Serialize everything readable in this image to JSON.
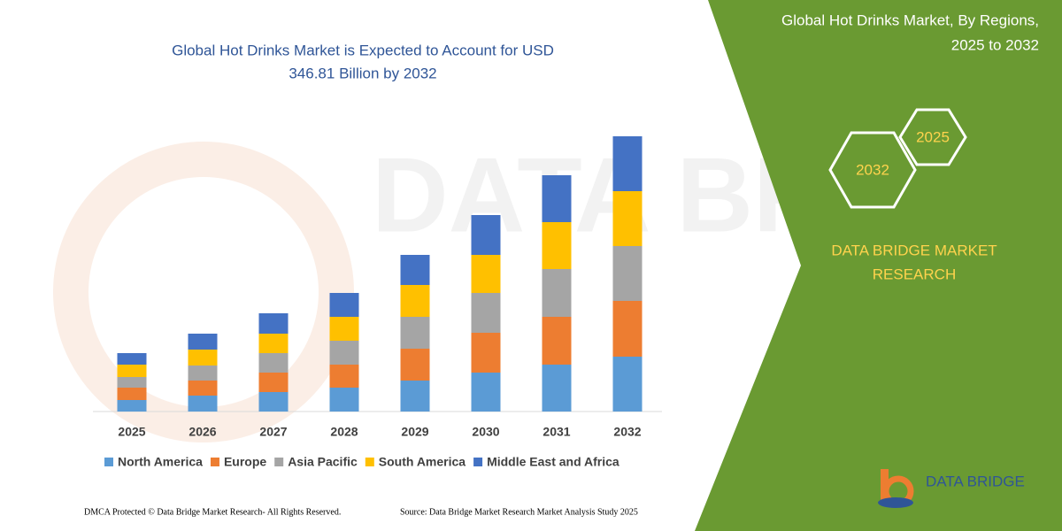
{
  "chart_data": {
    "type": "bar",
    "stacked": true,
    "title": [
      "Global Hot Drinks Market is Expected to Account for USD",
      "346.81 Billion by 2032"
    ],
    "categories": [
      "2025",
      "2026",
      "2027",
      "2028",
      "2029",
      "2030",
      "2031",
      "2032"
    ],
    "series": [
      {
        "name": "North America",
        "color": "#5b9bd5",
        "values": [
          13,
          18,
          22,
          27,
          35,
          44,
          53,
          62
        ]
      },
      {
        "name": "Europe",
        "color": "#ed7d31",
        "values": [
          14,
          17,
          22,
          26,
          36,
          45,
          54,
          63
        ]
      },
      {
        "name": "Asia Pacific",
        "color": "#a5a5a5",
        "values": [
          12,
          17,
          22,
          27,
          36,
          45,
          54,
          62
        ]
      },
      {
        "name": "South America",
        "color": "#ffc000",
        "values": [
          14,
          18,
          22,
          27,
          36,
          43,
          53,
          62
        ]
      },
      {
        "name": "Middle East and Africa",
        "color": "#4472c4",
        "values": [
          13,
          18,
          23,
          27,
          34,
          45,
          53,
          62
        ]
      }
    ],
    "ylim": [
      0,
      320
    ],
    "grid": false,
    "legend": "bottom"
  },
  "panel": {
    "title": [
      "Global Hot Drinks Market, By Regions,",
      "2025 to 2032"
    ],
    "badges": [
      "2032",
      "2025"
    ],
    "brand": [
      "DATA BRIDGE MARKET",
      "RESEARCH"
    ],
    "logo": "DATA BRIDGE"
  },
  "footer": {
    "left": "DMCA Protected © Data Bridge Market Research- All Rights Reserved.",
    "right": "Source: Data Bridge Market Research Market Analysis Study 2025"
  }
}
